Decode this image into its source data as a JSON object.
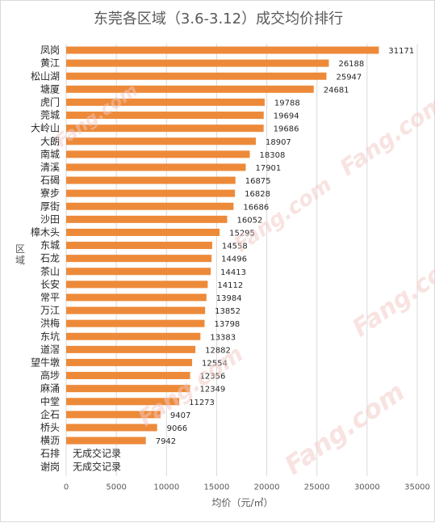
{
  "watermark": "Fang.com",
  "chart_data": {
    "type": "bar",
    "orientation": "horizontal",
    "title": "东莞各区域（3.6-3.12）成交均价排行",
    "xlabel": "均价（元/㎡）",
    "ylabel": "区域",
    "xlim": [
      0,
      35000
    ],
    "xticks": [
      0,
      5000,
      10000,
      15000,
      20000,
      25000,
      30000,
      35000
    ],
    "grid": true,
    "bar_color": "#ed8a3a",
    "categories": [
      "凤岗",
      "黄江",
      "松山湖",
      "塘厦",
      "虎门",
      "莞城",
      "大岭山",
      "大朗",
      "南城",
      "清溪",
      "石碣",
      "寮步",
      "厚街",
      "沙田",
      "樟木头",
      "东城",
      "石龙",
      "茶山",
      "长安",
      "常平",
      "万江",
      "洪梅",
      "东坑",
      "道滘",
      "望牛墩",
      "高埗",
      "麻涌",
      "中堂",
      "企石",
      "桥头",
      "横沥",
      "石排",
      "谢岗"
    ],
    "values": [
      31171,
      26188,
      25947,
      24681,
      19788,
      19694,
      19686,
      18907,
      18308,
      17901,
      16875,
      16828,
      16686,
      16052,
      15295,
      14558,
      14496,
      14413,
      14112,
      13984,
      13852,
      13798,
      13383,
      12882,
      12554,
      12356,
      12349,
      11273,
      9407,
      9066,
      7942,
      null,
      null
    ],
    "no_data_label": "无成交记录"
  }
}
